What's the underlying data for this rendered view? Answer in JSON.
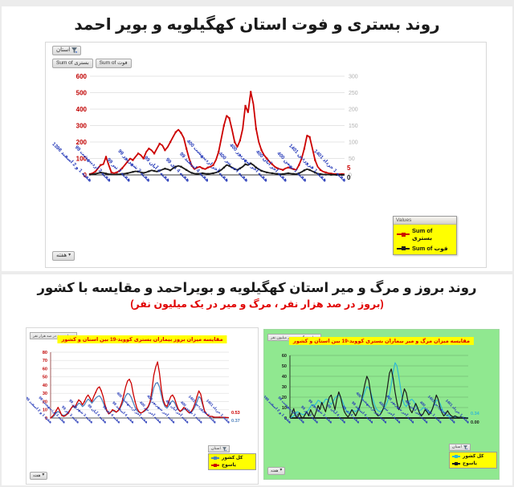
{
  "page": {
    "title1": "روند بستری و فوت استان کهگیلویه و بویر احمد",
    "title2": "روند بروز و مرگ و میر استان کهگیلویه و بویراحمد و مقایسه با کشور",
    "subtitle2": "(بروز در صد هزار نفر ، مرگ و میر در یک میلیون نفر)"
  },
  "controls": {
    "province_filter_label": "استان",
    "week_button_label": "هفته",
    "field_buttons": [
      "Sum of بستری",
      "Sum of فوت"
    ],
    "values_header": "Values"
  },
  "colors": {
    "axis_red": "#c00000",
    "series_red": "#cc0000",
    "series_black": "#1a1a1a",
    "country_blue": "#4f81bd",
    "country_cyan": "#2fb9d4",
    "label_blue": "#2438b8",
    "legend_yellow": "#ffff00",
    "green_panel": "#90e890",
    "right_axis_gray": "#b0b0b0"
  },
  "week_labels": [
    "هفته 1 و 2 اسفند 1398",
    "هفته 3 اردیبهشت 99",
    "هفته 3 تیر 99",
    "هفته 3 شهریور 99",
    "هفته 4 آبان 99",
    "هفته 4 دی 99",
    "هفته 4 اسفند 99",
    "هفته آخر اردیبهشت 400",
    "هفته آخر تیر 400",
    "هفته آخر شهریور 400",
    "هفته آخر آبان 400",
    "هفته 1 بهمن 400",
    "هفته 1 فروردین 1401",
    "هفته 1 خرداد 1401"
  ],
  "chart_data": [
    {
      "id": "main",
      "type": "line",
      "title": "روند بستری و فوت استان کهگیلویه و بویر احمد",
      "x": "week_labels",
      "ylim": [
        0,
        600
      ],
      "yticks": [
        0,
        100,
        200,
        300,
        400,
        500,
        600
      ],
      "axis_label_color": "#c00000",
      "right_axis": {
        "ylim": [
          0,
          300
        ],
        "ticks": [
          0,
          50,
          100,
          150,
          200,
          250,
          300
        ],
        "color": "#b0b0b0"
      },
      "legend": {
        "header": "Values",
        "position": "right-bottom"
      },
      "series": [
        {
          "name": "Sum of بستری",
          "color": "#cc0000",
          "markers": true,
          "values": [
            5,
            10,
            20,
            40,
            60,
            65,
            110,
            60,
            15,
            10,
            15,
            25,
            40,
            60,
            80,
            100,
            90,
            110,
            130,
            120,
            100,
            140,
            160,
            150,
            130,
            160,
            190,
            180,
            150,
            170,
            200,
            230,
            260,
            275,
            255,
            225,
            160,
            100,
            55,
            35,
            45,
            50,
            40,
            35,
            45,
            50,
            60,
            90,
            140,
            220,
            300,
            360,
            345,
            275,
            200,
            170,
            210,
            280,
            420,
            380,
            505,
            430,
            280,
            200,
            150,
            120,
            100,
            80,
            65,
            50,
            40,
            35,
            30,
            40,
            45,
            40,
            35,
            30,
            60,
            100,
            160,
            240,
            230,
            160,
            90,
            50,
            30,
            20,
            15,
            10,
            8,
            6,
            5,
            5,
            5,
            5
          ]
        },
        {
          "name": "Sum of فوت",
          "color": "#1a1a1a",
          "markers": true,
          "values": [
            2,
            4,
            6,
            10,
            14,
            12,
            8,
            5,
            3,
            2,
            3,
            4,
            6,
            8,
            10,
            14,
            18,
            22,
            20,
            16,
            12,
            16,
            22,
            28,
            24,
            20,
            26,
            32,
            38,
            34,
            28,
            40,
            50,
            55,
            50,
            40,
            30,
            20,
            12,
            8,
            6,
            8,
            10,
            8,
            6,
            8,
            10,
            14,
            20,
            30,
            45,
            60,
            55,
            45,
            35,
            30,
            40,
            50,
            65,
            60,
            70,
            60,
            45,
            35,
            25,
            20,
            15,
            12,
            10,
            8,
            6,
            5,
            5,
            8,
            10,
            8,
            6,
            5,
            10,
            18,
            28,
            35,
            30,
            22,
            14,
            8,
            5,
            3,
            2,
            2,
            1,
            1,
            0,
            0,
            0,
            0
          ]
        }
      ],
      "end_labels": [
        {
          "text": "5",
          "color": "#cc0000",
          "at": 38,
          "dy": 0
        },
        {
          "text": "0",
          "color": "#1a1a1a",
          "at": 0,
          "dy": 4
        }
      ]
    },
    {
      "id": "inc",
      "type": "line",
      "title": "مقایسه میزان بروز بیماران بستری کووید-19 بین استان و کشور",
      "axis_chip": "میزان بروز در صد هزار نفر",
      "x": "week_labels",
      "ylim": [
        0,
        80
      ],
      "yticks": [
        0,
        10,
        20,
        30,
        40,
        50,
        60,
        70,
        80
      ],
      "axis_label_color": "#c00000",
      "legend": {
        "position": "right-bottom"
      },
      "series": [
        {
          "name": "کل کشور",
          "color": "#4f81bd",
          "markers": false,
          "values": [
            0,
            1,
            3,
            6,
            8,
            6,
            4,
            3,
            4,
            6,
            9,
            12,
            14,
            12,
            15,
            18,
            17,
            14,
            16,
            20,
            23,
            21,
            18,
            21,
            24,
            26,
            27,
            24,
            19,
            13,
            8,
            6,
            7,
            9,
            8,
            7,
            9,
            12,
            16,
            22,
            27,
            30,
            29,
            25,
            19,
            13,
            9,
            7,
            6,
            7,
            8,
            10,
            13,
            18,
            27,
            37,
            42,
            43,
            38,
            28,
            19,
            14,
            12,
            15,
            19,
            21,
            19,
            14,
            10,
            8,
            9,
            11,
            10,
            8,
            6,
            7,
            10,
            14,
            20,
            26,
            24,
            16,
            8,
            5,
            3,
            2,
            2,
            1,
            1,
            1,
            1,
            0.9,
            0.8,
            0.6,
            0.45,
            0.37
          ]
        },
        {
          "name": "یاسوج",
          "color": "#cc0000",
          "markers": true,
          "values": [
            0,
            2,
            5,
            9,
            13,
            8,
            3,
            2,
            3,
            5,
            8,
            12,
            15,
            13,
            18,
            22,
            20,
            16,
            20,
            25,
            28,
            24,
            20,
            26,
            31,
            36,
            38,
            33,
            26,
            16,
            9,
            5,
            7,
            10,
            9,
            7,
            9,
            13,
            19,
            28,
            38,
            45,
            47,
            42,
            30,
            20,
            12,
            8,
            6,
            7,
            9,
            11,
            14,
            20,
            34,
            52,
            62,
            68,
            55,
            35,
            22,
            16,
            14,
            20,
            26,
            28,
            24,
            17,
            11,
            8,
            10,
            13,
            11,
            8,
            6,
            8,
            12,
            18,
            26,
            33,
            29,
            18,
            9,
            5,
            3,
            2,
            2,
            1,
            1,
            1,
            1,
            1,
            0.8,
            0.7,
            0.6,
            0.53
          ]
        }
      ],
      "end_labels": [
        {
          "text": "0.53",
          "color": "#cc0000",
          "at": 7,
          "dy": 0
        },
        {
          "text": "0.37",
          "color": "#4f81bd",
          "at": 1,
          "dy": 4
        }
      ]
    },
    {
      "id": "mort",
      "type": "line",
      "title": "مقایسه میزان مرگ و میر بیماران بستری کووید-19 بین استان و کشور",
      "axis_chip": "میزان مرگ و میر در میلیون نفر",
      "bg": "#90e890",
      "x": "week_labels",
      "ylim": [
        0,
        60
      ],
      "yticks": [
        0,
        10,
        20,
        30,
        40,
        50,
        60
      ],
      "axis_label_color": "#1a1a1a",
      "legend": {
        "position": "right-bottom"
      },
      "series": [
        {
          "name": "کل کشور",
          "color": "#2fb9d4",
          "markers": false,
          "values": [
            0,
            1,
            2,
            4,
            6,
            5,
            4,
            3,
            4,
            6,
            8,
            11,
            13,
            12,
            14,
            17,
            16,
            13,
            15,
            18,
            18,
            15,
            13,
            16,
            19,
            21,
            22,
            20,
            16,
            11,
            7,
            5,
            6,
            8,
            7,
            6,
            8,
            11,
            15,
            20,
            26,
            30,
            29,
            25,
            19,
            13,
            9,
            7,
            6,
            7,
            9,
            12,
            16,
            22,
            32,
            44,
            53,
            50,
            40,
            28,
            18,
            13,
            11,
            14,
            17,
            18,
            16,
            12,
            9,
            7,
            8,
            10,
            9,
            7,
            5,
            6,
            9,
            13,
            17,
            17,
            14,
            9,
            5,
            3,
            2,
            2,
            1.5,
            1,
            1,
            0.9,
            0.8,
            0.7,
            0.6,
            0.5,
            0.4,
            0.34
          ]
        },
        {
          "name": "یاسوج",
          "color": "#1a1a1a",
          "markers": false,
          "values": [
            0,
            4,
            9,
            2,
            0,
            5,
            1,
            0,
            3,
            6,
            2,
            8,
            4,
            1,
            6,
            12,
            8,
            15,
            10,
            6,
            14,
            20,
            22,
            15,
            8,
            18,
            25,
            20,
            12,
            6,
            3,
            1,
            4,
            8,
            5,
            2,
            6,
            10,
            16,
            24,
            33,
            40,
            36,
            24,
            14,
            8,
            4,
            2,
            3,
            6,
            10,
            18,
            30,
            43,
            47,
            38,
            25,
            15,
            8,
            12,
            20,
            28,
            24,
            15,
            8,
            5,
            9,
            14,
            10,
            5,
            2,
            4,
            8,
            6,
            3,
            5,
            9,
            15,
            22,
            18,
            10,
            5,
            2,
            4,
            7,
            4,
            2,
            1,
            2,
            1,
            0.5,
            1,
            0.5,
            0.3,
            0.1,
            0
          ]
        }
      ],
      "end_labels": [
        {
          "text": "0.34",
          "color": "#2fb9d4",
          "at": 4.5,
          "dy": 0
        },
        {
          "text": "0.00",
          "color": "#1a1a1a",
          "at": 0,
          "dy": 5
        }
      ]
    }
  ]
}
